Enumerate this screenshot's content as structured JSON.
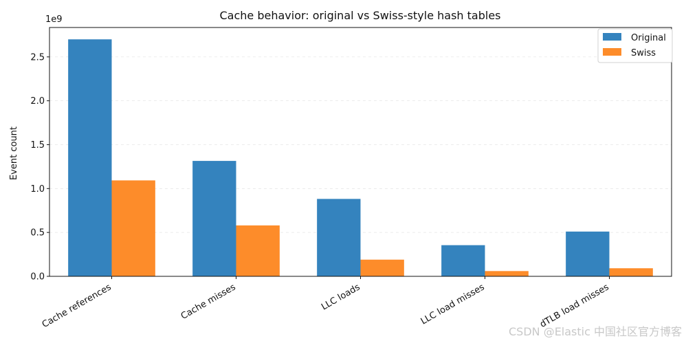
{
  "chart_data": {
    "type": "bar",
    "title": "Cache behavior: original vs Swiss-style hash tables",
    "xlabel": "",
    "ylabel": "Event count",
    "y_scale_label": "1e9",
    "y_scale": 1000000000,
    "ylim": [
      0,
      2835000000
    ],
    "yticks": [
      0,
      500000000,
      1000000000,
      1500000000,
      2000000000,
      2500000000
    ],
    "ytick_labels": [
      "0.0",
      "0.5",
      "1.0",
      "1.5",
      "2.0",
      "2.5"
    ],
    "categories": [
      "Cache references",
      "Cache misses",
      "LLC loads",
      "LLC load misses",
      "dTLB load misses"
    ],
    "series": [
      {
        "name": "Original",
        "color": "#3483be",
        "values": [
          2700000000,
          1315000000,
          882000000,
          355000000,
          510000000
        ]
      },
      {
        "name": "Swiss",
        "color": "#fd8c2a",
        "values": [
          1093000000,
          580000000,
          190000000,
          60000000,
          92000000
        ]
      }
    ],
    "grid": "horizontal-dashed",
    "legend_position": "top-right"
  },
  "watermark": {
    "text": "CSDN @Elastic 中国社区官方博客"
  }
}
